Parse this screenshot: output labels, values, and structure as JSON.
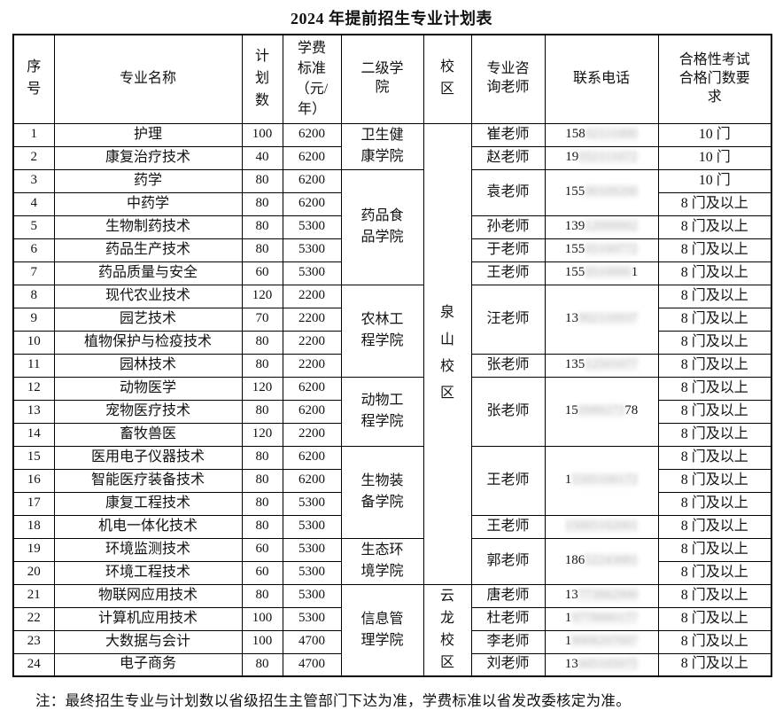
{
  "title": "2024 年提前招生专业计划表",
  "note": "注：最终招生专业与计划数以省级招生主管部门下达为准，学费标准以省发改委核定为准。",
  "colors": {
    "border": "#000000",
    "text": "#111111",
    "redaction_smudge": "#e9e9e9",
    "background": "#ffffff"
  },
  "table": {
    "headers": [
      "序号",
      "专业名称",
      "计划数",
      "学费标准（元/年）",
      "二级学院",
      "校区",
      "专业咨询老师",
      "联系电话",
      "合格性考试合格门数要求"
    ],
    "rows": [
      {
        "seq": "1",
        "major": "护理",
        "plan": "100",
        "tuition": "6200",
        "qual": "10 门"
      },
      {
        "seq": "2",
        "major": "康复治疗技术",
        "plan": "40",
        "tuition": "6200",
        "qual": "10 门"
      },
      {
        "seq": "3",
        "major": "药学",
        "plan": "80",
        "tuition": "6200",
        "qual": "10 门"
      },
      {
        "seq": "4",
        "major": "中药学",
        "plan": "80",
        "tuition": "6200",
        "qual": "8 门及以上"
      },
      {
        "seq": "5",
        "major": "生物制药技术",
        "plan": "80",
        "tuition": "5300",
        "qual": "8 门及以上"
      },
      {
        "seq": "6",
        "major": "药品生产技术",
        "plan": "80",
        "tuition": "5300",
        "qual": "8 门及以上"
      },
      {
        "seq": "7",
        "major": "药品质量与安全",
        "plan": "60",
        "tuition": "5300",
        "qual": "8 门及以上"
      },
      {
        "seq": "8",
        "major": "现代农业技术",
        "plan": "120",
        "tuition": "2200",
        "qual": "8 门及以上"
      },
      {
        "seq": "9",
        "major": "园艺技术",
        "plan": "70",
        "tuition": "2200",
        "qual": "8 门及以上"
      },
      {
        "seq": "10",
        "major": "植物保护与检疫技术",
        "plan": "80",
        "tuition": "2200",
        "qual": "8 门及以上"
      },
      {
        "seq": "11",
        "major": "园林技术",
        "plan": "80",
        "tuition": "2200",
        "qual": "8 门及以上"
      },
      {
        "seq": "12",
        "major": "动物医学",
        "plan": "120",
        "tuition": "6200",
        "qual": "8 门及以上"
      },
      {
        "seq": "13",
        "major": "宠物医疗技术",
        "plan": "80",
        "tuition": "6200",
        "qual": "8 门及以上"
      },
      {
        "seq": "14",
        "major": "畜牧兽医",
        "plan": "120",
        "tuition": "2200",
        "qual": "8 门及以上"
      },
      {
        "seq": "15",
        "major": "医用电子仪器技术",
        "plan": "80",
        "tuition": "6200",
        "qual": "8 门及以上"
      },
      {
        "seq": "16",
        "major": "智能医疗装备技术",
        "plan": "80",
        "tuition": "6200",
        "qual": "8 门及以上"
      },
      {
        "seq": "17",
        "major": "康复工程技术",
        "plan": "80",
        "tuition": "5300",
        "qual": "8 门及以上"
      },
      {
        "seq": "18",
        "major": "机电一体化技术",
        "plan": "80",
        "tuition": "5300",
        "qual": "8 门及以上"
      },
      {
        "seq": "19",
        "major": "环境监测技术",
        "plan": "60",
        "tuition": "5300",
        "qual": "8 门及以上"
      },
      {
        "seq": "20",
        "major": "环境工程技术",
        "plan": "60",
        "tuition": "5300",
        "qual": "8 门及以上"
      },
      {
        "seq": "21",
        "major": "物联网应用技术",
        "plan": "80",
        "tuition": "5300",
        "qual": "8 门及以上"
      },
      {
        "seq": "22",
        "major": "计算机应用技术",
        "plan": "100",
        "tuition": "5300",
        "qual": "8 门及以上"
      },
      {
        "seq": "23",
        "major": "大数据与会计",
        "plan": "100",
        "tuition": "4700",
        "qual": "8 门及以上"
      },
      {
        "seq": "24",
        "major": "电子商务",
        "plan": "80",
        "tuition": "4700",
        "qual": "8 门及以上"
      }
    ],
    "college_spans": [
      {
        "text": "卫生健康学院",
        "start": 0,
        "span": 2
      },
      {
        "text": "药品食品学院",
        "start": 2,
        "span": 5
      },
      {
        "text": "农林工程学院",
        "start": 7,
        "span": 4
      },
      {
        "text": "动物工程学院",
        "start": 11,
        "span": 3
      },
      {
        "text": "生物装备学院",
        "start": 14,
        "span": 4
      },
      {
        "text": "生态环境学院",
        "start": 18,
        "span": 2
      },
      {
        "text": "信息管理学院",
        "start": 20,
        "span": 4
      }
    ],
    "campus_spans": [
      {
        "text": "泉山校区",
        "start": 0,
        "span": 20
      },
      {
        "text": "云龙校区",
        "start": 20,
        "span": 4
      }
    ],
    "teacher_spans": [
      {
        "name": "崔老师",
        "start": 0,
        "span": 1,
        "phone_prefix": "158",
        "phone_hidden": "02111000",
        "phone_suffix": ""
      },
      {
        "name": "赵老师",
        "start": 1,
        "span": 1,
        "phone_prefix": "19",
        "phone_hidden": "052111072",
        "phone_suffix": ""
      },
      {
        "name": "袁老师",
        "start": 2,
        "span": 2,
        "phone_prefix": "155",
        "phone_hidden": "00109200",
        "phone_suffix": ""
      },
      {
        "name": "孙老师",
        "start": 4,
        "span": 1,
        "phone_prefix": "139",
        "phone_hidden": "12000002",
        "phone_suffix": ""
      },
      {
        "name": "于老师",
        "start": 5,
        "span": 1,
        "phone_prefix": "155",
        "phone_hidden": "05100772",
        "phone_suffix": ""
      },
      {
        "name": "王老师",
        "start": 6,
        "span": 1,
        "phone_prefix": "155",
        "phone_hidden": "0510000",
        "phone_suffix": "1"
      },
      {
        "name": "汪老师",
        "start": 7,
        "span": 3,
        "phone_prefix": "13",
        "phone_hidden": "902110937",
        "phone_suffix": ""
      },
      {
        "name": "张老师",
        "start": 10,
        "span": 1,
        "phone_prefix": "135",
        "phone_hidden": "12501077",
        "phone_suffix": ""
      },
      {
        "name": "张老师",
        "start": 11,
        "span": 3,
        "phone_prefix": "15",
        "phone_hidden": "0989273",
        "phone_suffix": "78"
      },
      {
        "name": "王老师",
        "start": 14,
        "span": 3,
        "phone_prefix": "1",
        "phone_hidden": "5505100172",
        "phone_suffix": ""
      },
      {
        "name": "王老师",
        "start": 17,
        "span": 1,
        "phone_prefix": "",
        "phone_hidden": "15005102001",
        "phone_suffix": ""
      },
      {
        "name": "郭老师",
        "start": 18,
        "span": 2,
        "phone_prefix": "186",
        "phone_hidden": "52243881",
        "phone_suffix": ""
      },
      {
        "name": "唐老师",
        "start": 20,
        "span": 1,
        "phone_prefix": "13",
        "phone_hidden": "773882900",
        "phone_suffix": ""
      },
      {
        "name": "杜老师",
        "start": 21,
        "span": 1,
        "phone_prefix": "1",
        "phone_hidden": "9778880177",
        "phone_suffix": ""
      },
      {
        "name": "李老师",
        "start": 22,
        "span": 1,
        "phone_prefix": "1",
        "phone_hidden": "8008207007",
        "phone_suffix": ""
      },
      {
        "name": "刘老师",
        "start": 23,
        "span": 1,
        "phone_prefix": "13",
        "phone_hidden": "605105075",
        "phone_suffix": ""
      }
    ]
  }
}
